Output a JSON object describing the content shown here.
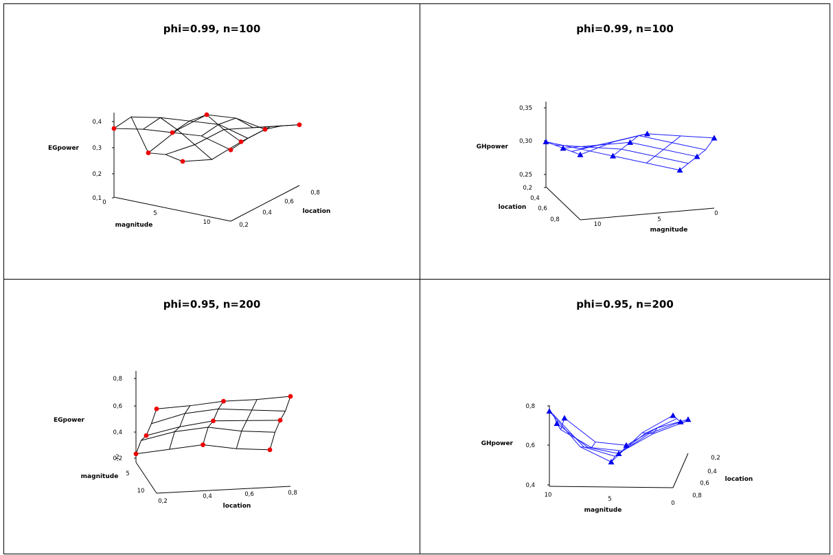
{
  "chart_data": [
    {
      "type": "surface3d",
      "title": "phi=0.99, n=100",
      "xlabel": "magnitude",
      "ylabel": "location",
      "zlabel": "EGpower",
      "x_ticks": [
        "0",
        "5",
        "10"
      ],
      "y_ticks": [
        "0,2",
        "0,4",
        "0,6",
        "0,8"
      ],
      "z_ticks": [
        "0,1",
        "0,2",
        "0,3",
        "0,4"
      ],
      "zlim": [
        0.1,
        0.42
      ],
      "line_color": "#000000",
      "marker": "circle",
      "marker_color": "#ee0000",
      "magnitude": [
        0,
        2.5,
        5,
        7.5,
        10
      ],
      "location": [
        0.2,
        0.35,
        0.5,
        0.65,
        0.8
      ],
      "values": [
        [
          0.36,
          0.38,
          0.39,
          0.4,
          0.37
        ],
        [
          0.37,
          0.39,
          0.4,
          0.41,
          0.38
        ],
        [
          0.2,
          0.31,
          0.39,
          0.4,
          0.38
        ],
        [
          0.16,
          0.22,
          0.3,
          0.33,
          0.36
        ],
        [
          0.1,
          0.13,
          0.22,
          0.3,
          0.33
        ]
      ]
    },
    {
      "type": "surface3d",
      "title": "phi=0.99, n=100",
      "xlabel": "magnitude",
      "ylabel": "location",
      "zlabel": "GHpower",
      "x_ticks": [
        "10",
        "5",
        "0"
      ],
      "y_ticks": [
        "0,4",
        "0,6",
        "0,8"
      ],
      "z_ticks": [
        "0,2",
        "0,25",
        "0,30",
        "0,35"
      ],
      "zlim": [
        0.2,
        0.37
      ],
      "line_color": "#1a1aff",
      "marker": "triangle",
      "marker_color": "#0000ee",
      "magnitude": [
        0,
        2.5,
        5,
        7.5,
        10
      ],
      "location": [
        0.2,
        0.35,
        0.5,
        0.65,
        0.8
      ],
      "values": [
        [
          0.33,
          0.35,
          0.36,
          0.35,
          0.34
        ],
        [
          0.32,
          0.33,
          0.34,
          0.32,
          0.3
        ],
        [
          0.31,
          0.31,
          0.31,
          0.29,
          0.27
        ],
        [
          0.3,
          0.29,
          0.28,
          0.26,
          0.24
        ],
        [
          0.29,
          0.27,
          0.25,
          0.23,
          0.21
        ]
      ]
    },
    {
      "type": "surface3d",
      "title": "phi=0.95, n=200",
      "xlabel": "location",
      "ylabel": "magnitude",
      "zlabel": "EGpower",
      "x_ticks": [
        "0,2",
        "0,4",
        "0,6",
        "0,8"
      ],
      "y_ticks": [
        "2",
        "5",
        "10"
      ],
      "z_ticks": [
        "0,2",
        "0,4",
        "0,6",
        "0,8"
      ],
      "zlim": [
        0.2,
        0.85
      ],
      "line_color": "#000000",
      "marker": "circle",
      "marker_color": "#ee0000",
      "magnitude": [
        0,
        2.5,
        5,
        7.5,
        10
      ],
      "location": [
        0.2,
        0.35,
        0.5,
        0.65,
        0.8
      ],
      "values": [
        [
          0.8,
          0.81,
          0.83,
          0.83,
          0.84
        ],
        [
          0.64,
          0.7,
          0.72,
          0.7,
          0.68
        ],
        [
          0.5,
          0.55,
          0.58,
          0.57,
          0.56
        ],
        [
          0.41,
          0.46,
          0.48,
          0.44,
          0.42
        ],
        [
          0.26,
          0.28,
          0.3,
          0.26,
          0.24
        ]
      ]
    },
    {
      "type": "surface3d",
      "title": "phi=0.95, n=200",
      "xlabel": "magnitude",
      "ylabel": "location",
      "zlabel": "GHpower",
      "x_ticks": [
        "10",
        "5",
        "0"
      ],
      "y_ticks": [
        "0,2",
        "0,4",
        "0,6",
        "0,8"
      ],
      "z_ticks": [
        "0,4",
        "0,6",
        "0,8"
      ],
      "zlim": [
        0.35,
        0.9
      ],
      "line_color": "#1a1aff",
      "marker": "triangle",
      "marker_color": "#0000ee",
      "magnitude": [
        0,
        2.5,
        5,
        7.5,
        10
      ],
      "location": [
        0.2,
        0.35,
        0.5,
        0.65,
        0.8
      ],
      "values": [
        [
          0.86,
          0.62,
          0.52,
          0.72,
          0.84
        ],
        [
          0.78,
          0.56,
          0.5,
          0.66,
          0.76
        ],
        [
          0.66,
          0.5,
          0.46,
          0.6,
          0.68
        ],
        [
          0.56,
          0.44,
          0.42,
          0.54,
          0.62
        ],
        [
          0.58,
          0.42,
          0.4,
          0.52,
          0.58
        ]
      ]
    }
  ]
}
